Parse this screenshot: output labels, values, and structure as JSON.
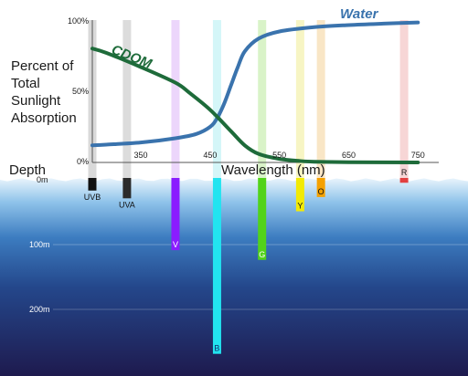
{
  "title_lines": [
    "Percent of",
    "Total",
    "Sunlight",
    "Absorption"
  ],
  "y_ticks": [
    "100%",
    "50%",
    "0%"
  ],
  "x_ticks": [
    "350",
    "450",
    "550",
    "650",
    "750"
  ],
  "x_axis_label": "Wavelength (nm)",
  "depth_label": "Depth",
  "depth_ticks": [
    "0m",
    "100m",
    "200m"
  ],
  "chart_data": {
    "type": "line",
    "xlabel": "Wavelength (nm)",
    "ylabel": "Percent of Total Sunlight Absorption",
    "xlim": [
      280,
      780
    ],
    "ylim": [
      0,
      100
    ],
    "series": [
      {
        "name": "Water",
        "color": "#3a73ad",
        "x": [
          280,
          300,
          350,
          400,
          430,
          450,
          460,
          470,
          480,
          490,
          500,
          520,
          550,
          600,
          650,
          700,
          750
        ],
        "y": [
          12,
          12.5,
          14,
          17,
          20,
          25,
          31,
          41,
          54,
          67,
          78,
          87,
          92,
          95,
          96.5,
          97.5,
          98.3
        ]
      },
      {
        "name": "CDOM",
        "color": "#1e6b3a",
        "x": [
          280,
          300,
          350,
          400,
          420,
          450,
          480,
          500,
          520,
          550,
          580,
          600,
          650,
          750
        ],
        "y": [
          80,
          77,
          67,
          56,
          49,
          37,
          22,
          12,
          6,
          2.5,
          1,
          0.5,
          0.2,
          0
        ]
      }
    ]
  },
  "light_bands": [
    {
      "label": "UVB",
      "wavelength": 280,
      "depth_m": 18,
      "color": "#111111",
      "label_color": "#111111",
      "chart_color": "#d9d9d9",
      "label_pos": "below"
    },
    {
      "label": "UVA",
      "wavelength": 330,
      "depth_m": 30,
      "color": "#2b2b2b",
      "label_color": "#111111",
      "chart_color": "#dcdcdc",
      "label_pos": "below"
    },
    {
      "label": "V",
      "wavelength": 400,
      "depth_m": 110,
      "color": "#8a1cff",
      "label_color": "#ffffff",
      "chart_color": "#ecd6fb",
      "label_pos": "inside"
    },
    {
      "label": "B",
      "wavelength": 460,
      "depth_m": 270,
      "color": "#22e4f0",
      "label_color": "#0f2a6b",
      "chart_color": "#d4f6f8",
      "label_pos": "inside"
    },
    {
      "label": "G",
      "wavelength": 525,
      "depth_m": 125,
      "color": "#52d31a",
      "label_color": "#ffffff",
      "chart_color": "#d9f3c8",
      "label_pos": "inside"
    },
    {
      "label": "Y",
      "wavelength": 580,
      "depth_m": 50,
      "color": "#f2ea06",
      "label_color": "#111111",
      "chart_color": "#f7f5c4",
      "label_pos": "inside"
    },
    {
      "label": "O",
      "wavelength": 610,
      "depth_m": 28,
      "color": "#f5a100",
      "label_color": "#111111",
      "chart_color": "#f9e6c6",
      "label_pos": "inside"
    },
    {
      "label": "R",
      "wavelength": 730,
      "depth_m": 6,
      "color": "#e24040",
      "label_color": "#111111",
      "chart_color": "#f7d6d6",
      "label_pos": "above"
    }
  ],
  "colors": {
    "water_top": "#dceefa",
    "water_mid": "#5b9fd6",
    "water_deep": "#22407f",
    "water_bottom": "#1e1b4f",
    "text": "#1a1a1a"
  }
}
